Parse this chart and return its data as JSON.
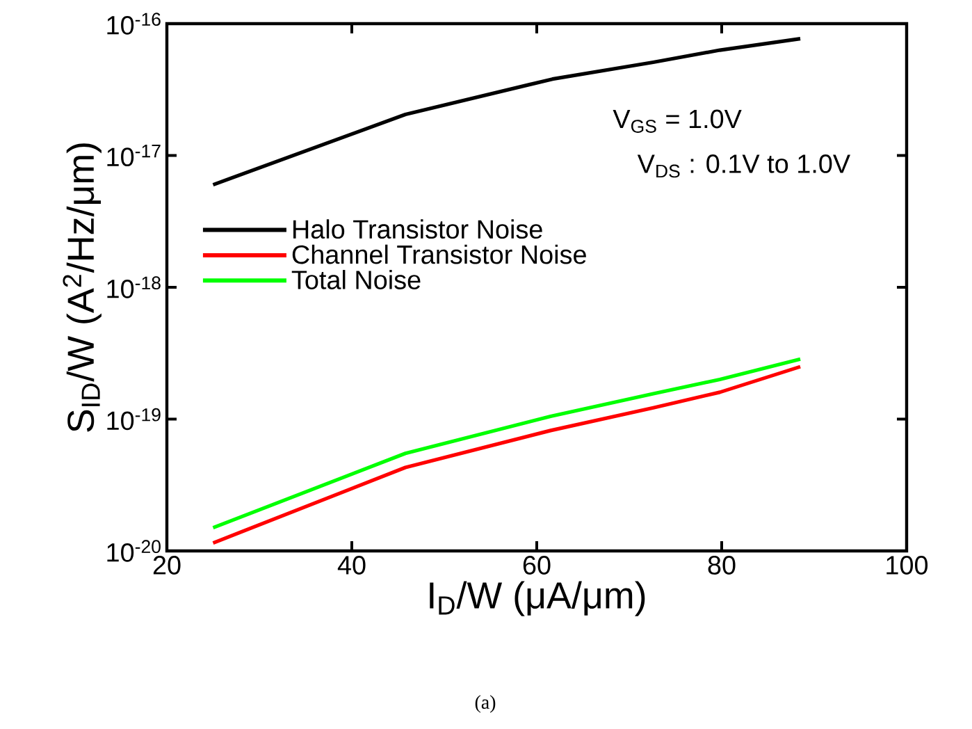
{
  "chart_data": {
    "type": "line",
    "xlabel": "I$_{D}$/W (μA/μm)",
    "ylabel": "S$_{ID}$/W (A$^{2}$/Hz/μm)",
    "log": "y",
    "xlim": [
      20,
      100
    ],
    "xticks": [
      20,
      40,
      60,
      80,
      100
    ],
    "ylim": [
      1e-20,
      1e-16
    ],
    "yticks": [
      {
        "value": 1e-20,
        "label": "10$^{-20}$"
      },
      {
        "value": 1e-19,
        "label": "10$^{-19}$"
      },
      {
        "value": 1e-18,
        "label": "10$^{-18}$"
      },
      {
        "value": 1e-17,
        "label": "10$^{-17}$"
      },
      {
        "value": 1e-16,
        "label": "10$^{-16}$"
      }
    ],
    "legend": "left",
    "series": [
      {
        "name": "Halo Transistor Noise",
        "color": "#000000",
        "x": [
          25,
          45.8,
          61.7,
          72.6,
          79.8,
          88.5
        ],
        "values": [
          6e-18,
          2.05e-17,
          3.8e-17,
          5.1e-17,
          6.3e-17,
          7.7e-17
        ]
      },
      {
        "name": "Channel Transistor Noise",
        "color": "#ff0000",
        "x": [
          25,
          45.8,
          61.5,
          72.6,
          79.8,
          88.5
        ],
        "values": [
          1.15e-20,
          4.3e-20,
          8.2e-20,
          1.22e-19,
          1.6e-19,
          2.5e-19
        ]
      },
      {
        "name": "Total Noise",
        "color": "#00ff00",
        "x": [
          25,
          45.8,
          61.5,
          72.6,
          79.8,
          88.5
        ],
        "values": [
          1.5e-20,
          5.5e-20,
          1.05e-19,
          1.56e-19,
          2e-19,
          2.85e-19
        ]
      }
    ],
    "annotations": [
      "V$_{GS}$ = 1.0V",
      "V$_{DS}$ :  0.1V to 1.0V",
      "(a)"
    ]
  }
}
